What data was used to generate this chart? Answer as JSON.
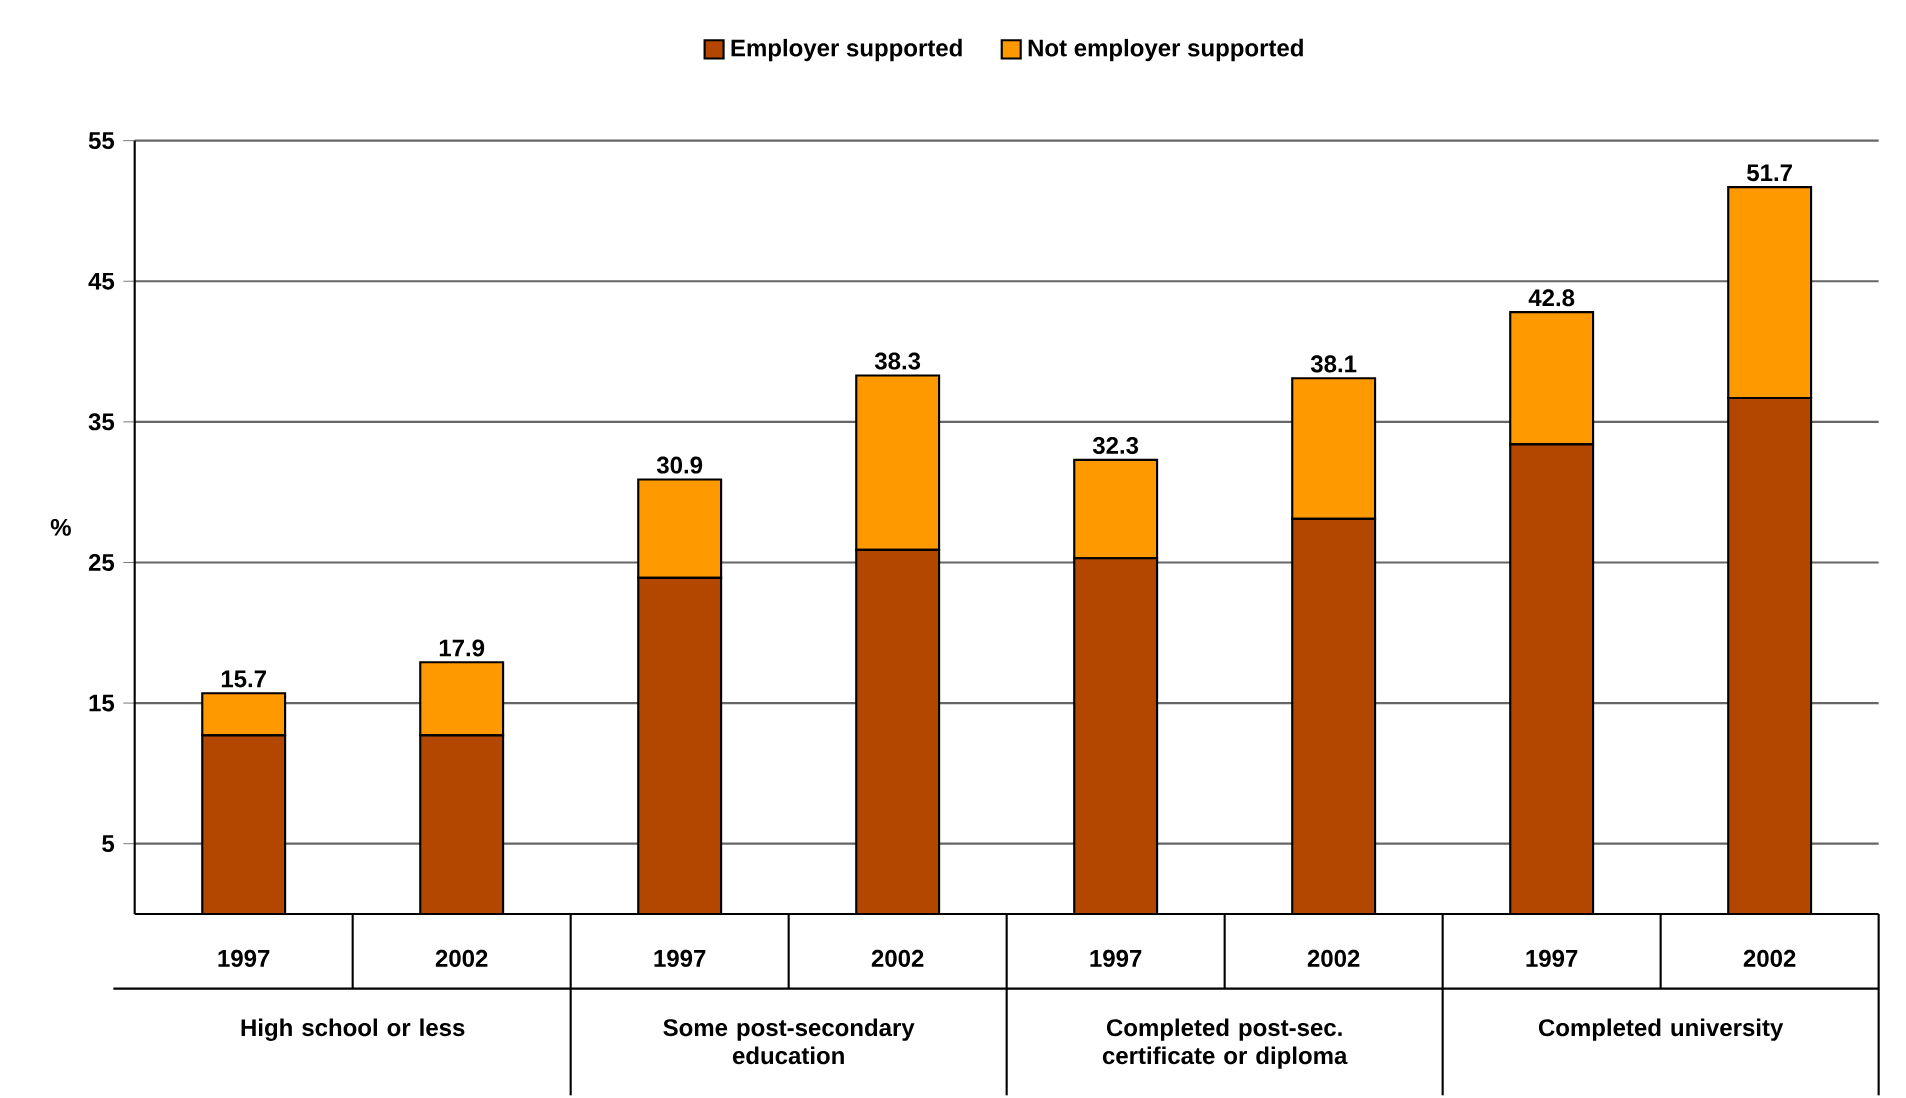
{
  "chart_data": {
    "type": "bar",
    "stacked": true,
    "categories": [
      "1997",
      "2002",
      "1997",
      "2002",
      "1997",
      "2002",
      "1997",
      "2002"
    ],
    "series": [
      {
        "name": "Employer supported",
        "color": "#b34700",
        "values": [
          12.7,
          12.7,
          23.9,
          25.9,
          25.3,
          28.1,
          33.4,
          36.7
        ]
      },
      {
        "name": "Not employer supported",
        "color": "#ff9900",
        "values": [
          3.0,
          5.2,
          7.0,
          12.4,
          7.0,
          10.0,
          9.4,
          15.0
        ]
      }
    ],
    "totals": [
      "15.7",
      "17.9",
      "30.9",
      "38.3",
      "32.3",
      "38.1",
      "42.8",
      "51.7"
    ],
    "ylabel": "%",
    "ylim": [
      0,
      55
    ],
    "yticks": [
      5,
      15,
      25,
      35,
      45,
      55
    ],
    "grid": "y",
    "legend": "top",
    "annotations": [
      "High school or less",
      "Some post-secondary education",
      "Completed post-sec. certificate or diploma",
      "Completed university"
    ]
  }
}
